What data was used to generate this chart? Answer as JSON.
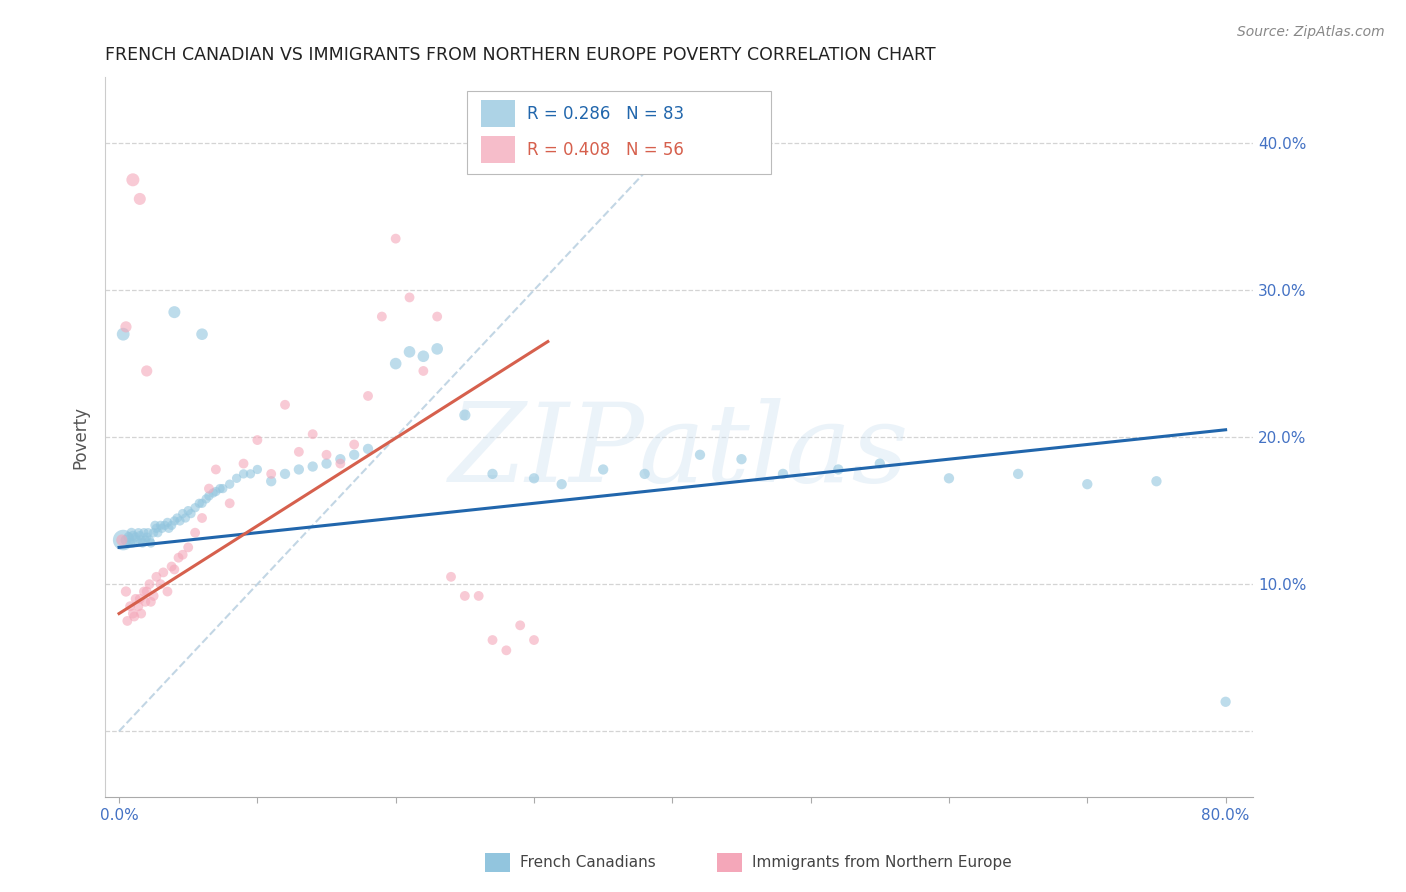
{
  "title": "FRENCH CANADIAN VS IMMIGRANTS FROM NORTHERN EUROPE POVERTY CORRELATION CHART",
  "source": "Source: ZipAtlas.com",
  "ylabel": "Poverty",
  "watermark": "ZIPatlas",
  "xlim": [
    -0.01,
    0.82
  ],
  "ylim": [
    -0.045,
    0.445
  ],
  "legend_blue_label": "French Canadians",
  "legend_pink_label": "Immigrants from Northern Europe",
  "blue_color": "#92c5de",
  "pink_color": "#f4a7b9",
  "blue_line_color": "#2166ac",
  "pink_line_color": "#d6604d",
  "diag_line_color": "#b8cfe0",
  "grid_color": "#d0d0d0",
  "title_color": "#222222",
  "tick_label_color": "#4472C4",
  "ylabel_color": "#555555",
  "source_color": "#888888",
  "blue_line_x": [
    0.0,
    0.8
  ],
  "blue_line_y": [
    0.125,
    0.205
  ],
  "pink_line_x": [
    0.0,
    0.31
  ],
  "pink_line_y": [
    0.08,
    0.265
  ],
  "diag_line_x": [
    0.0,
    0.42
  ],
  "diag_line_y": [
    0.0,
    0.42
  ],
  "blue_scatter_x": [
    0.003,
    0.005,
    0.007,
    0.008,
    0.009,
    0.01,
    0.01,
    0.012,
    0.013,
    0.014,
    0.015,
    0.016,
    0.017,
    0.018,
    0.019,
    0.02,
    0.021,
    0.022,
    0.023,
    0.025,
    0.026,
    0.027,
    0.028,
    0.03,
    0.031,
    0.033,
    0.035,
    0.036,
    0.038,
    0.04,
    0.042,
    0.044,
    0.046,
    0.048,
    0.05,
    0.052,
    0.055,
    0.058,
    0.06,
    0.063,
    0.065,
    0.068,
    0.07,
    0.073,
    0.075,
    0.08,
    0.085,
    0.09,
    0.095,
    0.1,
    0.11,
    0.12,
    0.13,
    0.14,
    0.15,
    0.16,
    0.17,
    0.18,
    0.2,
    0.21,
    0.22,
    0.23,
    0.25,
    0.27,
    0.3,
    0.32,
    0.35,
    0.38,
    0.42,
    0.45,
    0.48,
    0.52,
    0.55,
    0.6,
    0.65,
    0.7,
    0.75,
    0.8,
    0.003,
    0.04,
    0.06
  ],
  "blue_scatter_y": [
    0.13,
    0.13,
    0.132,
    0.128,
    0.135,
    0.133,
    0.128,
    0.132,
    0.13,
    0.135,
    0.133,
    0.13,
    0.128,
    0.135,
    0.13,
    0.132,
    0.135,
    0.13,
    0.128,
    0.135,
    0.14,
    0.138,
    0.135,
    0.14,
    0.138,
    0.14,
    0.142,
    0.138,
    0.14,
    0.143,
    0.145,
    0.143,
    0.148,
    0.145,
    0.15,
    0.148,
    0.152,
    0.155,
    0.155,
    0.158,
    0.16,
    0.162,
    0.163,
    0.165,
    0.165,
    0.168,
    0.172,
    0.175,
    0.175,
    0.178,
    0.17,
    0.175,
    0.178,
    0.18,
    0.182,
    0.185,
    0.188,
    0.192,
    0.25,
    0.258,
    0.255,
    0.26,
    0.215,
    0.175,
    0.172,
    0.168,
    0.178,
    0.175,
    0.188,
    0.185,
    0.175,
    0.178,
    0.182,
    0.172,
    0.175,
    0.168,
    0.17,
    0.02,
    0.27,
    0.285,
    0.27
  ],
  "blue_scatter_size": [
    220,
    60,
    55,
    50,
    50,
    50,
    45,
    45,
    45,
    45,
    45,
    45,
    45,
    45,
    45,
    45,
    45,
    45,
    45,
    45,
    45,
    45,
    45,
    45,
    45,
    45,
    45,
    45,
    45,
    45,
    45,
    45,
    45,
    45,
    45,
    45,
    45,
    45,
    45,
    45,
    45,
    45,
    45,
    45,
    45,
    45,
    45,
    45,
    45,
    45,
    55,
    55,
    55,
    55,
    55,
    55,
    55,
    55,
    70,
    70,
    70,
    70,
    65,
    55,
    55,
    55,
    55,
    55,
    55,
    55,
    55,
    55,
    55,
    55,
    55,
    55,
    55,
    55,
    85,
    75,
    70
  ],
  "pink_scatter_x": [
    0.002,
    0.005,
    0.006,
    0.008,
    0.01,
    0.011,
    0.012,
    0.014,
    0.015,
    0.016,
    0.018,
    0.019,
    0.02,
    0.022,
    0.023,
    0.025,
    0.027,
    0.03,
    0.032,
    0.035,
    0.038,
    0.04,
    0.043,
    0.046,
    0.05,
    0.055,
    0.06,
    0.065,
    0.07,
    0.08,
    0.09,
    0.1,
    0.11,
    0.12,
    0.13,
    0.14,
    0.15,
    0.16,
    0.17,
    0.18,
    0.19,
    0.2,
    0.21,
    0.22,
    0.23,
    0.24,
    0.25,
    0.26,
    0.27,
    0.28,
    0.29,
    0.3,
    0.005,
    0.01,
    0.015,
    0.02
  ],
  "pink_scatter_y": [
    0.13,
    0.095,
    0.075,
    0.085,
    0.08,
    0.078,
    0.09,
    0.085,
    0.09,
    0.08,
    0.095,
    0.088,
    0.095,
    0.1,
    0.088,
    0.092,
    0.105,
    0.1,
    0.108,
    0.095,
    0.112,
    0.11,
    0.118,
    0.12,
    0.125,
    0.135,
    0.145,
    0.165,
    0.178,
    0.155,
    0.182,
    0.198,
    0.175,
    0.222,
    0.19,
    0.202,
    0.188,
    0.182,
    0.195,
    0.228,
    0.282,
    0.335,
    0.295,
    0.245,
    0.282,
    0.105,
    0.092,
    0.092,
    0.062,
    0.055,
    0.072,
    0.062,
    0.275,
    0.375,
    0.362,
    0.245
  ],
  "pink_scatter_size": [
    65,
    55,
    50,
    50,
    50,
    50,
    50,
    50,
    50,
    50,
    50,
    50,
    50,
    50,
    50,
    50,
    50,
    50,
    50,
    50,
    50,
    50,
    50,
    50,
    50,
    50,
    50,
    50,
    50,
    50,
    50,
    50,
    50,
    50,
    50,
    50,
    50,
    50,
    50,
    50,
    50,
    50,
    50,
    50,
    50,
    50,
    50,
    50,
    50,
    50,
    50,
    50,
    65,
    88,
    75,
    65
  ],
  "background_color": "#ffffff"
}
